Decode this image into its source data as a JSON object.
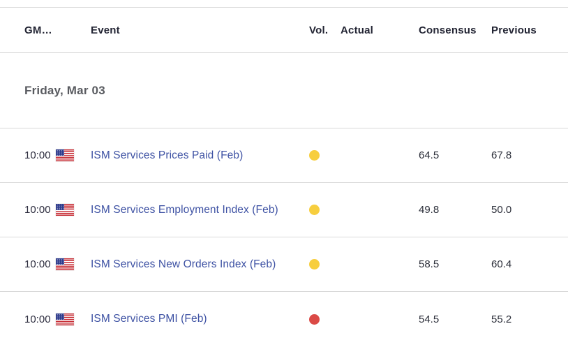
{
  "table": {
    "columns": [
      {
        "key": "gmt",
        "label": "GM…"
      },
      {
        "key": "event",
        "label": "Event"
      },
      {
        "key": "vol",
        "label": "Vol."
      },
      {
        "key": "actual",
        "label": "Actual"
      },
      {
        "key": "consensus",
        "label": "Consensus"
      },
      {
        "key": "previous",
        "label": "Previous"
      }
    ],
    "date_header": "Friday, Mar 03",
    "rows": [
      {
        "time": "10:00",
        "country_flag": "us-flag",
        "event": "ISM Services Prices Paid (Feb)",
        "volatility": "medium",
        "actual": "",
        "consensus": "64.5",
        "previous": "67.8"
      },
      {
        "time": "10:00",
        "country_flag": "us-flag",
        "event": "ISM Services Employment Index (Feb)",
        "volatility": "medium",
        "actual": "",
        "consensus": "49.8",
        "previous": "50.0"
      },
      {
        "time": "10:00",
        "country_flag": "us-flag",
        "event": "ISM Services New Orders Index (Feb)",
        "volatility": "medium",
        "actual": "",
        "consensus": "58.5",
        "previous": "60.4"
      },
      {
        "time": "10:00",
        "country_flag": "us-flag",
        "event": "ISM Services PMI (Feb)",
        "volatility": "high",
        "actual": "",
        "consensus": "54.5",
        "previous": "55.2"
      }
    ],
    "colors": {
      "volatility_medium": "#f7ce3e",
      "volatility_high": "#db4a46",
      "event_link": "#3d51a3",
      "header_text": "#222433",
      "date_text": "#595b60",
      "value_text": "#2b2e39",
      "border": "#d9d9d9",
      "flag_canton": "#2e3b8c",
      "flag_stripe": "#c62a32"
    }
  }
}
